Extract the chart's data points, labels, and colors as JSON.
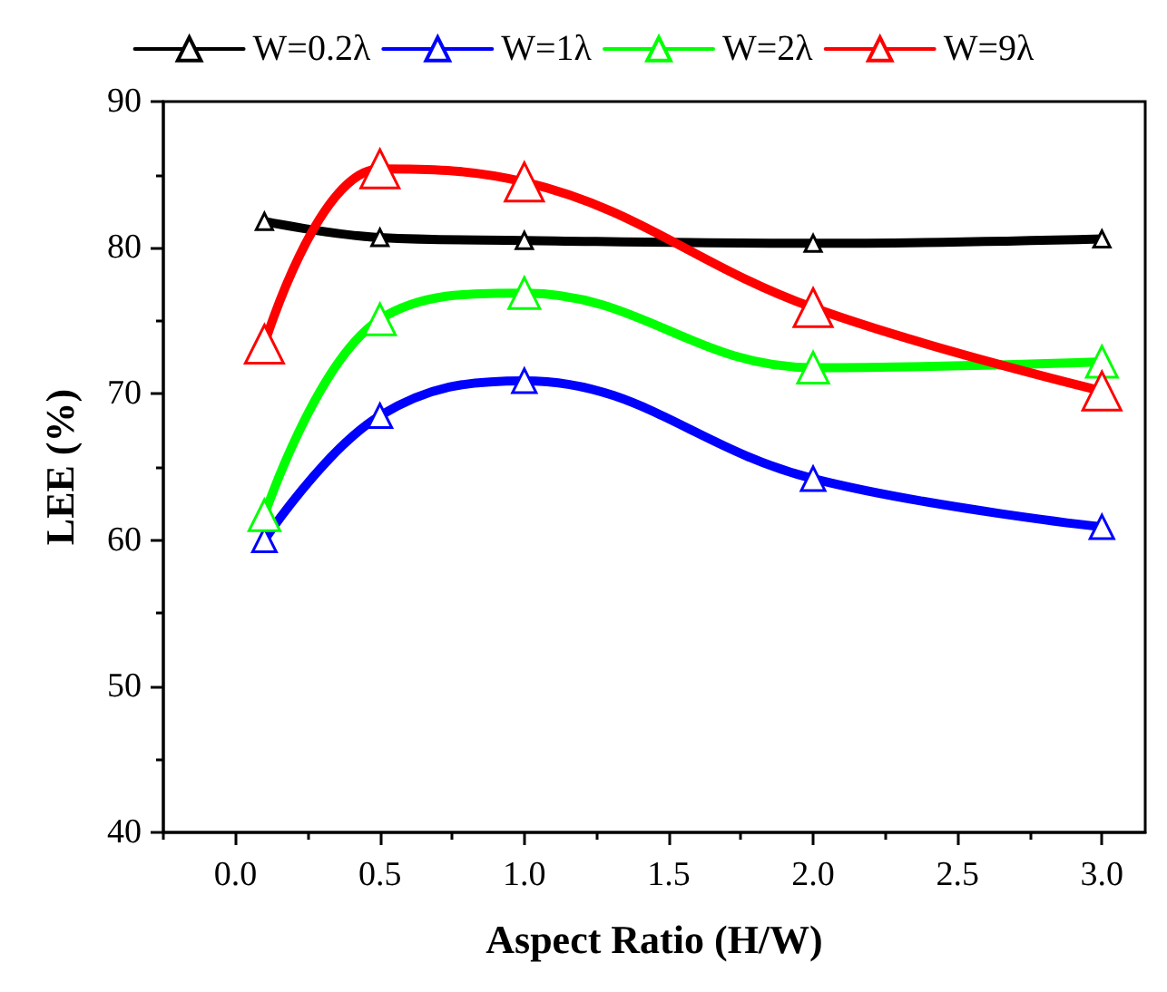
{
  "chart_data": {
    "type": "line",
    "xlabel": "Aspect Ratio (H/W)",
    "ylabel": "LEE (%)",
    "x": [
      0.1,
      0.5,
      1.0,
      2.0,
      3.0
    ],
    "series": [
      {
        "name": "W=0.2λ",
        "color": "#000000",
        "values": [
          81.8,
          80.7,
          80.5,
          80.3,
          80.6
        ]
      },
      {
        "name": "W=1λ",
        "color": "#0000ff",
        "values": [
          60.0,
          68.5,
          70.9,
          64.2,
          60.9
        ]
      },
      {
        "name": "W=2λ",
        "color": "#00ff00",
        "values": [
          61.7,
          75.1,
          76.9,
          71.8,
          72.2
        ]
      },
      {
        "name": "W=9λ",
        "color": "#ff0000",
        "values": [
          73.4,
          85.4,
          84.5,
          75.9,
          70.2
        ]
      }
    ],
    "xlim": [
      -0.25,
      3.15
    ],
    "xticks": [
      {
        "value": 0,
        "label": "0.0"
      },
      {
        "value": 0.5,
        "label": "0.5"
      },
      {
        "value": 1,
        "label": "1.0"
      },
      {
        "value": 1.5,
        "label": "1.5"
      },
      {
        "value": 2,
        "label": "2.0"
      },
      {
        "value": 2.5,
        "label": "2.5"
      },
      {
        "value": 3,
        "label": "3.0"
      }
    ],
    "ylim": [
      40,
      90
    ],
    "yticks": [
      40,
      50,
      60,
      70,
      80,
      90
    ],
    "grid": false,
    "legend": "top",
    "marker": "triangle",
    "line_style": "solid"
  }
}
